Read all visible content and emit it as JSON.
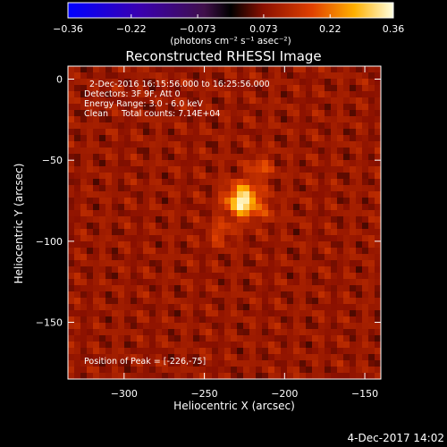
{
  "chart_data": {
    "type": "heatmap",
    "title": "Reconstructed RHESSI Image",
    "xlabel": "Heliocentric X (arcsec)",
    "ylabel": "Heliocentric Y (arcsec)",
    "xlim": [
      -335,
      -140
    ],
    "ylim": [
      -185,
      8
    ],
    "xticks": [
      -300,
      -250,
      -200,
      -150
    ],
    "yticks": [
      0,
      -50,
      -100,
      -150
    ],
    "xtick_labels": [
      "−300",
      "−250",
      "−200",
      "−150"
    ],
    "ytick_labels": [
      "0",
      "−50",
      "−100",
      "−150"
    ],
    "colorbar": {
      "range": [
        -0.36,
        0.36
      ],
      "tick_values": [
        -0.36,
        -0.22,
        -0.073,
        0.073,
        0.22,
        0.36
      ],
      "tick_labels": [
        "−0.36",
        "−0.22",
        "−0.073",
        "0.073",
        "0.22",
        "0.36"
      ],
      "unit_label": "(photons cm⁻² s⁻¹ asec⁻²)"
    },
    "annotations": {
      "time_range": "2-Dec-2016 16:15:56.000 to 16:25:56.000",
      "detectors": "Detectors: 3F 9F, Att 0",
      "energy": "Energy Range: 3.0 - 6.0 keV",
      "clean": "Clean     Total counts: 7.14E+04",
      "peak": "Position of Peak = [-226,-75]"
    },
    "peak": {
      "x": -226,
      "y": -75,
      "value": 0.36
    },
    "background_level": 0.09,
    "secondary_sources": [
      {
        "x": -215,
        "y": -55,
        "value": 0.18
      },
      {
        "x": -240,
        "y": -95,
        "value": 0.17
      },
      {
        "x": -210,
        "y": -82,
        "value": 0.13
      }
    ]
  },
  "footer": {
    "date": "4-Dec-2017 14:02"
  }
}
